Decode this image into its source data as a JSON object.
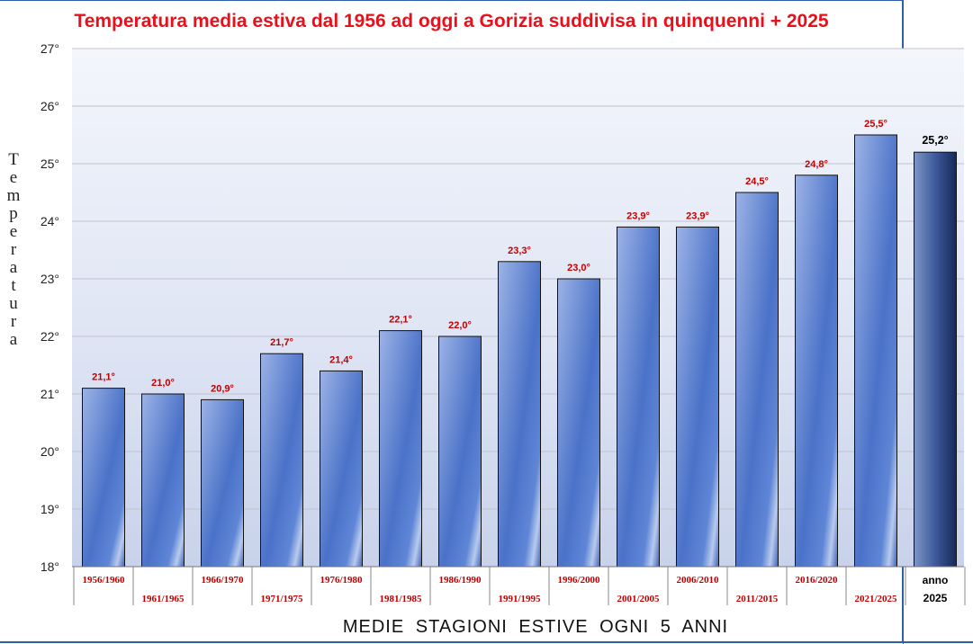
{
  "chart_data": {
    "type": "bar",
    "title": "Temperatura media estiva dal 1956 ad oggi a Gorizia suddivisa in quinquenni + 2025",
    "xlabel": "MEDIE  STAGIONI  ESTIVE  OGNI  5  ANNI",
    "ylabel": "Temperatura",
    "ylim": [
      18,
      27
    ],
    "yticks": [
      "18°",
      "19°",
      "20°",
      "21°",
      "22°",
      "23°",
      "24°",
      "25°",
      "26°",
      "27°"
    ],
    "grid": true,
    "categories": [
      "1956/1960",
      "1961/1965",
      "1966/1970",
      "1971/1975",
      "1976/1980",
      "1981/1985",
      "1986/1990",
      "1991/1995",
      "1996/2000",
      "2001/2005",
      "2006/2010",
      "2011/2015",
      "2016/2020",
      "2021/2025",
      "anno 2025"
    ],
    "values": [
      21.1,
      21.0,
      20.9,
      21.7,
      21.4,
      22.1,
      22.0,
      23.3,
      23.0,
      23.9,
      23.9,
      24.5,
      24.8,
      25.5,
      25.2
    ],
    "data_labels": [
      "21,1°",
      "21,0°",
      "20,9°",
      "21,7°",
      "21,4°",
      "22,1°",
      "22,0°",
      "23,3°",
      "23,0°",
      "23,9°",
      "23,9°",
      "24,5°",
      "24,8°",
      "25,5°",
      "25,2°"
    ],
    "colors": {
      "title": "#e8101a",
      "quinquennio_label": "#c00000",
      "anno_label": "#000000",
      "bar": "#4a72c8",
      "bar_highlight": "#1f3a78",
      "frame": "#2e5fa8"
    }
  }
}
